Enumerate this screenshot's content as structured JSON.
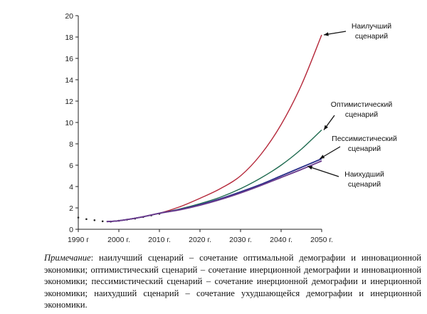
{
  "chart_data": {
    "type": "line",
    "title": "",
    "xlabel": "",
    "ylabel": "",
    "xlim": [
      1990,
      2050
    ],
    "ylim": [
      0,
      20
    ],
    "x_ticks": [
      "1990 г",
      "2000 г.",
      "2010 г.",
      "2020 г.",
      "2030 г.",
      "2040 г.",
      "2050 г."
    ],
    "y_ticks": [
      "0",
      "2",
      "4",
      "6",
      "8",
      "10",
      "12",
      "14",
      "16",
      "18",
      "20"
    ],
    "grid": false,
    "historical": {
      "x": [
        1990,
        1992,
        1994,
        1996,
        1998,
        2000,
        2002,
        2004,
        2006,
        2008,
        2010
      ],
      "y": [
        1.1,
        0.95,
        0.85,
        0.75,
        0.72,
        0.8,
        0.9,
        1.0,
        1.15,
        1.3,
        1.45
      ]
    },
    "series": [
      {
        "name": "Наилучший сценарий",
        "color": "#b5283a",
        "x": [
          1997,
          2000,
          2005,
          2010,
          2015,
          2020,
          2025,
          2030,
          2035,
          2040,
          2045,
          2050
        ],
        "y": [
          0.72,
          0.8,
          1.1,
          1.5,
          2.1,
          2.9,
          3.8,
          5.0,
          7.0,
          9.8,
          13.5,
          18.2
        ]
      },
      {
        "name": "Оптимистический сценарий",
        "color": "#1f6b50",
        "x": [
          1997,
          2000,
          2005,
          2010,
          2015,
          2020,
          2025,
          2030,
          2035,
          2040,
          2045,
          2050
        ],
        "y": [
          0.72,
          0.8,
          1.1,
          1.5,
          1.9,
          2.4,
          3.0,
          3.8,
          4.8,
          6.0,
          7.5,
          9.3
        ]
      },
      {
        "name": "Пессимистический сценарий",
        "color": "#2a2f8a",
        "x": [
          1997,
          2000,
          2005,
          2010,
          2015,
          2020,
          2025,
          2030,
          2035,
          2040,
          2045,
          2050
        ],
        "y": [
          0.72,
          0.8,
          1.1,
          1.5,
          1.85,
          2.3,
          2.85,
          3.5,
          4.2,
          5.0,
          5.8,
          6.6
        ]
      },
      {
        "name": "Наихудший сценарий",
        "color": "#6a3a8c",
        "x": [
          1997,
          2000,
          2005,
          2010,
          2015,
          2020,
          2025,
          2030,
          2035,
          2040,
          2045,
          2050
        ],
        "y": [
          0.72,
          0.8,
          1.1,
          1.5,
          1.82,
          2.25,
          2.78,
          3.4,
          4.1,
          4.85,
          5.6,
          6.4
        ]
      }
    ],
    "labels": [
      {
        "lines": [
          "Наилучший",
          "сценарий"
        ],
        "series": 0
      },
      {
        "lines": [
          "Оптимистический",
          "сценарий"
        ],
        "series": 1
      },
      {
        "lines": [
          "Пессимистический",
          "сценарий"
        ],
        "series": 2
      },
      {
        "lines": [
          "Наихудший",
          "сценарий"
        ],
        "series": 3
      }
    ]
  },
  "note": {
    "label": "Примечание",
    "text": ": наилучший сценарий – сочетание оптимальной демографии и инновационной экономики; оптимистический сценарий – сочетание инерционной демографии и инновационной экономики; пессимистический сценарий – сочетание инерционной демографии и инерционной экономики; наихудший сценарий – сочетание ухудшающейся демографии и инерционной экономики."
  }
}
